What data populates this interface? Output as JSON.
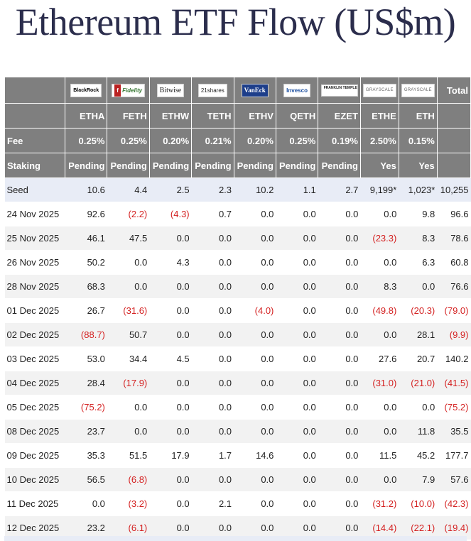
{
  "title": "Ethereum ETF Flow (US$m)",
  "issuers": [
    {
      "logo": "BlackRock",
      "ticker": "ETHA",
      "fee": "0.25%",
      "staking": "Pending"
    },
    {
      "logo": "Fidelity",
      "ticker": "FETH",
      "fee": "0.25%",
      "staking": "Pending"
    },
    {
      "logo": "Bitwise",
      "ticker": "ETHW",
      "fee": "0.20%",
      "staking": "Pending"
    },
    {
      "logo": "21shares",
      "ticker": "TETH",
      "fee": "0.21%",
      "staking": "Pending"
    },
    {
      "logo": "VanEck",
      "ticker": "ETHV",
      "fee": "0.20%",
      "staking": "Pending"
    },
    {
      "logo": "Invesco",
      "ticker": "QETH",
      "fee": "0.25%",
      "staking": "Pending"
    },
    {
      "logo": "FRANKLIN TEMPLETON",
      "ticker": "EZET",
      "fee": "0.19%",
      "staking": "Pending"
    },
    {
      "logo": "GRAYSCALE",
      "ticker": "ETHE",
      "fee": "2.50%",
      "staking": "Yes"
    },
    {
      "logo": "GRAYSCALE",
      "ticker": "ETH",
      "fee": "0.15%",
      "staking": "Yes"
    }
  ],
  "header": {
    "total_label": "Total",
    "fee_label": "Fee",
    "staking_label": "Staking"
  },
  "chart_data": {
    "type": "table",
    "columns": [
      "ETHA",
      "FETH",
      "ETHW",
      "TETH",
      "ETHV",
      "QETH",
      "EZET",
      "ETHE",
      "ETH",
      "Total"
    ],
    "rows": [
      {
        "label": "Seed",
        "values": [
          "10.6",
          "4.4",
          "2.5",
          "2.3",
          "10.2",
          "1.1",
          "2.7",
          "9,199*",
          "1,023*",
          "10,255"
        ]
      },
      {
        "label": "24 Nov 2025",
        "values": [
          "92.6",
          "(2.2)",
          "(4.3)",
          "0.7",
          "0.0",
          "0.0",
          "0.0",
          "0.0",
          "9.8",
          "96.6"
        ]
      },
      {
        "label": "25 Nov 2025",
        "values": [
          "46.1",
          "47.5",
          "0.0",
          "0.0",
          "0.0",
          "0.0",
          "0.0",
          "(23.3)",
          "8.3",
          "78.6"
        ]
      },
      {
        "label": "26 Nov 2025",
        "values": [
          "50.2",
          "0.0",
          "4.3",
          "0.0",
          "0.0",
          "0.0",
          "0.0",
          "0.0",
          "6.3",
          "60.8"
        ]
      },
      {
        "label": "28 Nov 2025",
        "values": [
          "68.3",
          "0.0",
          "0.0",
          "0.0",
          "0.0",
          "0.0",
          "0.0",
          "8.3",
          "0.0",
          "76.6"
        ]
      },
      {
        "label": "01 Dec 2025",
        "values": [
          "26.7",
          "(31.6)",
          "0.0",
          "0.0",
          "(4.0)",
          "0.0",
          "0.0",
          "(49.8)",
          "(20.3)",
          "(79.0)"
        ]
      },
      {
        "label": "02 Dec 2025",
        "values": [
          "(88.7)",
          "50.7",
          "0.0",
          "0.0",
          "0.0",
          "0.0",
          "0.0",
          "0.0",
          "28.1",
          "(9.9)"
        ]
      },
      {
        "label": "03 Dec 2025",
        "values": [
          "53.0",
          "34.4",
          "4.5",
          "0.0",
          "0.0",
          "0.0",
          "0.0",
          "27.6",
          "20.7",
          "140.2"
        ]
      },
      {
        "label": "04 Dec 2025",
        "values": [
          "28.4",
          "(17.9)",
          "0.0",
          "0.0",
          "0.0",
          "0.0",
          "0.0",
          "(31.0)",
          "(21.0)",
          "(41.5)"
        ]
      },
      {
        "label": "05 Dec 2025",
        "values": [
          "(75.2)",
          "0.0",
          "0.0",
          "0.0",
          "0.0",
          "0.0",
          "0.0",
          "0.0",
          "0.0",
          "(75.2)"
        ]
      },
      {
        "label": "08 Dec 2025",
        "values": [
          "23.7",
          "0.0",
          "0.0",
          "0.0",
          "0.0",
          "0.0",
          "0.0",
          "0.0",
          "11.8",
          "35.5"
        ]
      },
      {
        "label": "09 Dec 2025",
        "values": [
          "35.3",
          "51.5",
          "17.9",
          "1.7",
          "14.6",
          "0.0",
          "0.0",
          "11.5",
          "45.2",
          "177.7"
        ]
      },
      {
        "label": "10 Dec 2025",
        "values": [
          "56.5",
          "(6.8)",
          "0.0",
          "0.0",
          "0.0",
          "0.0",
          "0.0",
          "0.0",
          "7.9",
          "57.6"
        ]
      },
      {
        "label": "11 Dec 2025",
        "values": [
          "0.0",
          "(3.2)",
          "0.0",
          "2.1",
          "0.0",
          "0.0",
          "0.0",
          "(31.2)",
          "(10.0)",
          "(42.3)"
        ]
      },
      {
        "label": "12 Dec 2025",
        "values": [
          "23.2",
          "(6.1)",
          "0.0",
          "0.0",
          "0.0",
          "0.0",
          "0.0",
          "(14.4)",
          "(22.1)",
          "(19.4)"
        ]
      }
    ]
  },
  "colors": {
    "header_bg": "#7f7f7f",
    "negative": "#d42121",
    "seed_bg": "#e8ecf6",
    "stripe": "#f2f2f2",
    "title": "#2b2d4c"
  }
}
